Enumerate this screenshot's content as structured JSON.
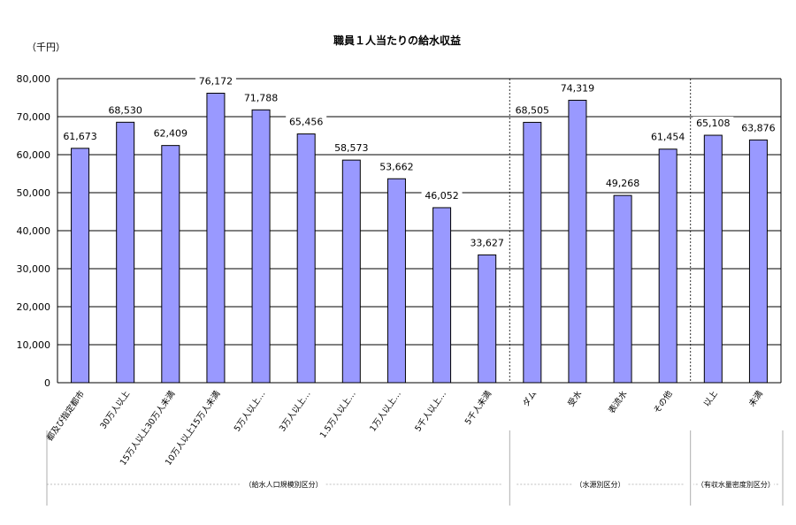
{
  "chart_data": {
    "type": "bar",
    "title": "職員１人当たりの給水収益",
    "unit_label": "（千円）",
    "ylim": [
      0,
      80000
    ],
    "yticks": [
      "0",
      "10,000",
      "20,000",
      "30,000",
      "40,000",
      "50,000",
      "60,000",
      "70,000",
      "80,000"
    ],
    "bar_color": "#9999ff",
    "categories": [
      "都及び指定都市",
      "30万人以上",
      "15万人以上30万人未満",
      "10万人以上15万人未満",
      "5万人以上…",
      "3万人以上…",
      "1.5万人以上…",
      "1万人以上…",
      "5千人以上…",
      "5千人未満",
      "ダム",
      "受水",
      "表流水",
      "その他",
      "以上",
      "未満"
    ],
    "values": [
      61673,
      68530,
      62409,
      76172,
      71788,
      65456,
      58573,
      53662,
      46052,
      33627,
      68505,
      74319,
      49268,
      61454,
      65108,
      63876
    ],
    "value_labels": [
      "61,673",
      "68,530",
      "62,409",
      "76,172",
      "71,788",
      "65,456",
      "58,573",
      "53,662",
      "46,052",
      "33,627",
      "68,505",
      "74,319",
      "49,268",
      "61,454",
      "65,108",
      "63,876"
    ],
    "groups": [
      {
        "label": "（給水人口規模別区分）",
        "count": 10
      },
      {
        "label": "（水源別区分）",
        "count": 4
      },
      {
        "label": "（有収水量密度別区分）",
        "count": 2
      }
    ],
    "grid": true,
    "legend": "none"
  }
}
